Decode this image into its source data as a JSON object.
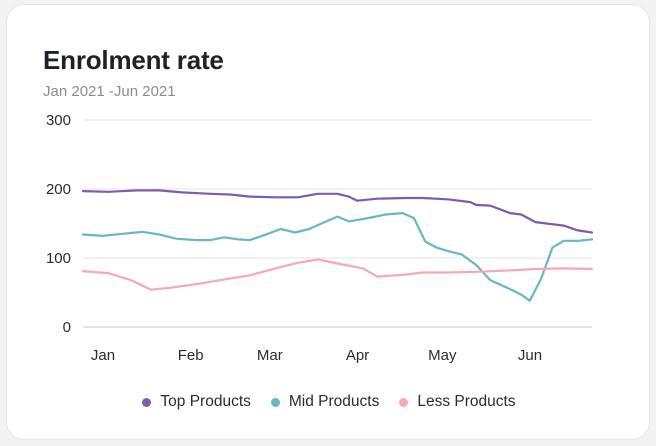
{
  "card": {
    "title": "Enrolment rate",
    "subtitle": "Jan 2021 -Jun 2021"
  },
  "chart_data": {
    "type": "line",
    "title": "Enrolment rate",
    "subtitle": "Jan 2021 -Jun 2021",
    "xlabel": "",
    "ylabel": "",
    "x_tick_labels": [
      "Jan",
      "Feb",
      "Mar",
      "Apr",
      "May",
      "Jun"
    ],
    "y_ticks": [
      0,
      100,
      200,
      300
    ],
    "ylim": [
      0,
      300
    ],
    "xlim": [
      "2021-01-01",
      "2021-06-30"
    ],
    "grid": "horizontal",
    "legend_position": "bottom",
    "series": [
      {
        "name": "Top Products",
        "color": "#7b5cb0",
        "points": [
          [
            "2021-01-01",
            197
          ],
          [
            "2021-01-10",
            196
          ],
          [
            "2021-01-20",
            198
          ],
          [
            "2021-01-28",
            198
          ],
          [
            "2021-02-05",
            195
          ],
          [
            "2021-02-15",
            193
          ],
          [
            "2021-02-22",
            192
          ],
          [
            "2021-03-01",
            189
          ],
          [
            "2021-03-10",
            188
          ],
          [
            "2021-03-18",
            188
          ],
          [
            "2021-03-25",
            193
          ],
          [
            "2021-04-01",
            193
          ],
          [
            "2021-04-05",
            189
          ],
          [
            "2021-04-08",
            183
          ],
          [
            "2021-04-15",
            186
          ],
          [
            "2021-04-25",
            187
          ],
          [
            "2021-05-01",
            187
          ],
          [
            "2021-05-10",
            185
          ],
          [
            "2021-05-18",
            181
          ],
          [
            "2021-05-20",
            177
          ],
          [
            "2021-05-25",
            176
          ],
          [
            "2021-06-01",
            165
          ],
          [
            "2021-06-05",
            163
          ],
          [
            "2021-06-10",
            152
          ],
          [
            "2021-06-20",
            147
          ],
          [
            "2021-06-25",
            140
          ],
          [
            "2021-06-30",
            137
          ]
        ]
      },
      {
        "name": "Mid Products",
        "color": "#6ab8bf",
        "points": [
          [
            "2021-01-01",
            134
          ],
          [
            "2021-01-08",
            132
          ],
          [
            "2021-01-15",
            135
          ],
          [
            "2021-01-22",
            138
          ],
          [
            "2021-01-28",
            134
          ],
          [
            "2021-02-03",
            128
          ],
          [
            "2021-02-10",
            126
          ],
          [
            "2021-02-15",
            126
          ],
          [
            "2021-02-20",
            130
          ],
          [
            "2021-02-25",
            127
          ],
          [
            "2021-03-01",
            126
          ],
          [
            "2021-03-06",
            133
          ],
          [
            "2021-03-12",
            142
          ],
          [
            "2021-03-17",
            137
          ],
          [
            "2021-03-22",
            142
          ],
          [
            "2021-03-28",
            153
          ],
          [
            "2021-04-01",
            160
          ],
          [
            "2021-04-05",
            153
          ],
          [
            "2021-04-12",
            158
          ],
          [
            "2021-04-18",
            163
          ],
          [
            "2021-04-24",
            165
          ],
          [
            "2021-04-28",
            158
          ],
          [
            "2021-05-02",
            124
          ],
          [
            "2021-05-06",
            115
          ],
          [
            "2021-05-10",
            110
          ],
          [
            "2021-05-15",
            105
          ],
          [
            "2021-05-20",
            90
          ],
          [
            "2021-05-25",
            68
          ],
          [
            "2021-06-01",
            55
          ],
          [
            "2021-06-05",
            47
          ],
          [
            "2021-06-08",
            38
          ],
          [
            "2021-06-12",
            70
          ],
          [
            "2021-06-16",
            115
          ],
          [
            "2021-06-20",
            125
          ],
          [
            "2021-06-25",
            125
          ],
          [
            "2021-06-30",
            127
          ]
        ]
      },
      {
        "name": "Less Products",
        "color": "#f7a9b3",
        "points": [
          [
            "2021-01-01",
            81
          ],
          [
            "2021-01-10",
            78
          ],
          [
            "2021-01-18",
            68
          ],
          [
            "2021-01-25",
            54
          ],
          [
            "2021-02-01",
            57
          ],
          [
            "2021-02-10",
            62
          ],
          [
            "2021-02-20",
            69
          ],
          [
            "2021-03-01",
            75
          ],
          [
            "2021-03-10",
            85
          ],
          [
            "2021-03-18",
            93
          ],
          [
            "2021-03-25",
            98
          ],
          [
            "2021-04-01",
            92
          ],
          [
            "2021-04-10",
            85
          ],
          [
            "2021-04-15",
            73
          ],
          [
            "2021-04-25",
            76
          ],
          [
            "2021-05-01",
            79
          ],
          [
            "2021-05-10",
            79
          ],
          [
            "2021-05-20",
            80
          ],
          [
            "2021-06-01",
            82
          ],
          [
            "2021-06-10",
            84
          ],
          [
            "2021-06-20",
            85
          ],
          [
            "2021-06-30",
            84
          ]
        ]
      }
    ]
  }
}
